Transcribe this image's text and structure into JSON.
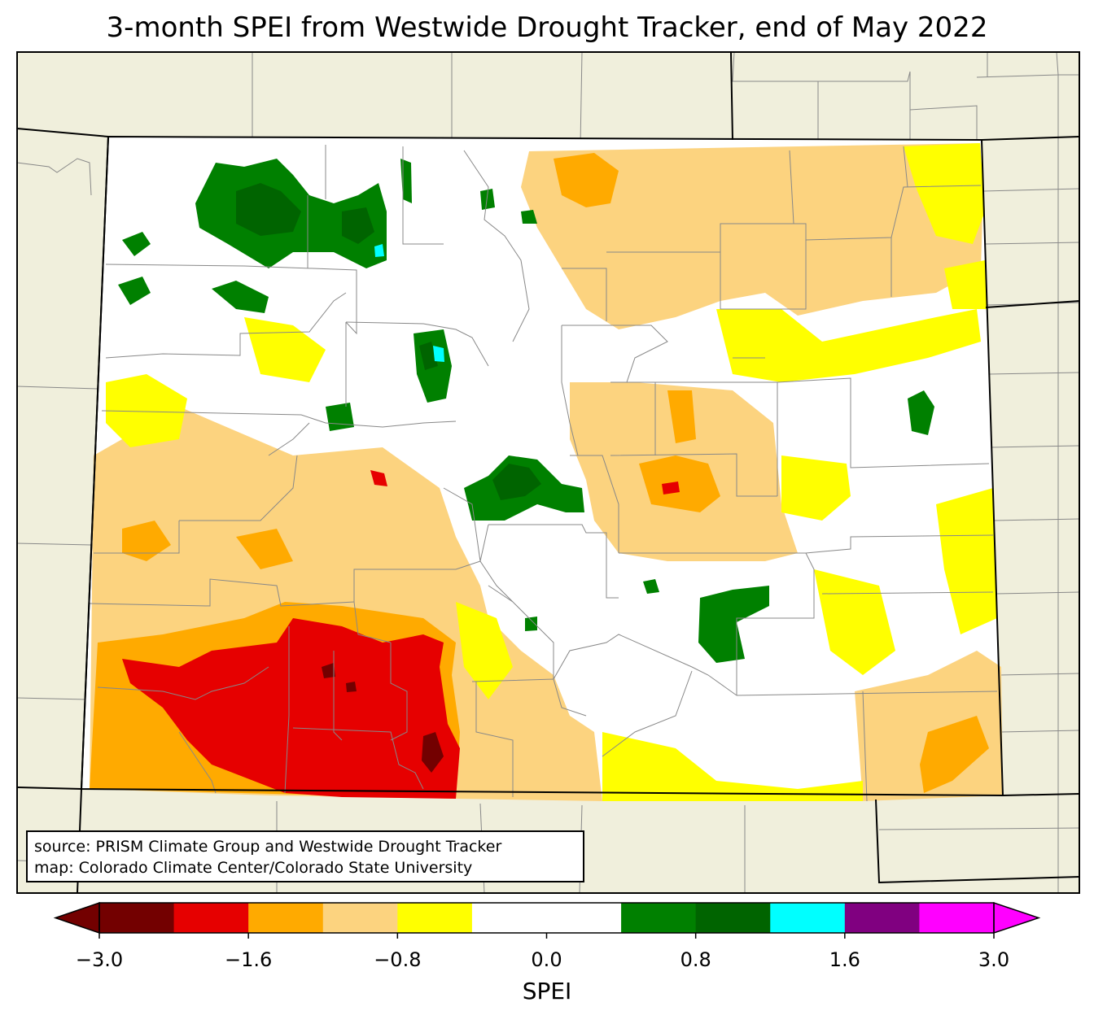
{
  "title": "3-month SPEI from Westwide Drought Tracker, end of May 2022",
  "source": {
    "line1": "source: PRISM Climate Group and Westwide Drought Tracker",
    "line2": "map: Colorado Climate Center/Colorado State University"
  },
  "colorbar": {
    "label": "SPEI",
    "ticks": [
      {
        "value": -3.0,
        "label": "−3.0"
      },
      {
        "value": -1.6,
        "label": "−1.6"
      },
      {
        "value": -0.8,
        "label": "−0.8"
      },
      {
        "value": 0.0,
        "label": "0.0"
      },
      {
        "value": 0.8,
        "label": "0.8"
      },
      {
        "value": 1.6,
        "label": "1.6"
      },
      {
        "value": 3.0,
        "label": "3.0"
      }
    ],
    "bins": [
      {
        "color": "#730000"
      },
      {
        "color": "#e60000"
      },
      {
        "color": "#ffaa00"
      },
      {
        "color": "#fcd37f"
      },
      {
        "color": "#ffff00"
      },
      {
        "color": "#ffffff"
      },
      {
        "color": "#ffffff"
      },
      {
        "color": "#008000"
      },
      {
        "color": "#006400"
      },
      {
        "color": "#00ffff"
      },
      {
        "color": "#800080"
      },
      {
        "color": "#ff00ff"
      }
    ]
  },
  "colors": {
    "land": "#f0efdc",
    "county_lines": "#888888",
    "state_lines": "#000000"
  }
}
